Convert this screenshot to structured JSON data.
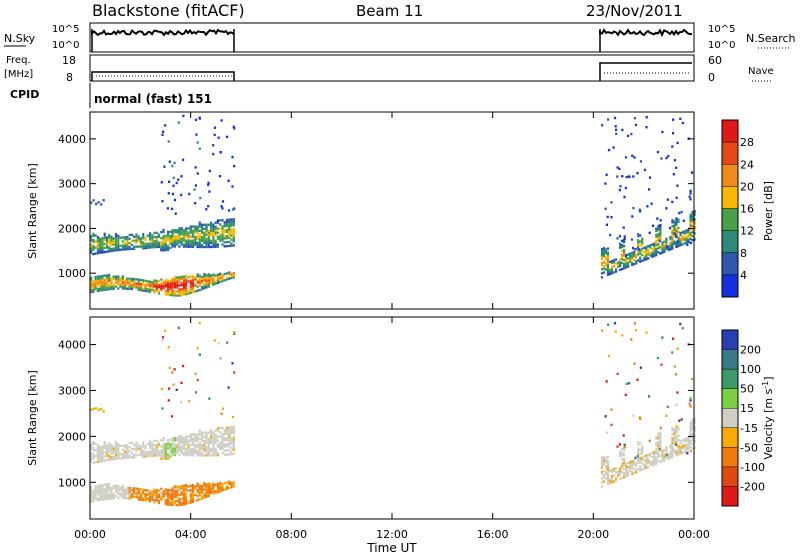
{
  "header": {
    "station": "Blackstone (fitACF)",
    "beam": "Beam 11",
    "date": "23/Nov/2011"
  },
  "panels": {
    "nsky": {
      "label": "N.Sky",
      "ticks": [
        "10^5",
        "10^0"
      ],
      "right_ticks": [
        "10^5",
        "10^0"
      ],
      "right_label": "N.Search"
    },
    "freq": {
      "label_line1": "Freq.",
      "label_line2": "[MHz]",
      "ticks": [
        "18",
        "8"
      ],
      "right_ticks": [
        "60",
        "0"
      ],
      "right_label": "Nave"
    },
    "cpid": {
      "label": "CPID",
      "value": "normal (fast) 151"
    }
  },
  "chart_data": [
    {
      "type": "heatmap",
      "title": "",
      "ylabel": "Slant Range [km]",
      "xlabel": "",
      "ylim": [
        200,
        4600
      ],
      "yticks": [
        1000,
        2000,
        3000,
        4000
      ],
      "colorbar": {
        "label": "Power [dB]",
        "ticks": [
          "4",
          "8",
          "12",
          "16",
          "20",
          "24",
          "28"
        ],
        "colors": [
          "#1430e0",
          "#2e58b0",
          "#2e8a78",
          "#4aa048",
          "#f6b800",
          "#f08a1c",
          "#e84818",
          "#e01818"
        ]
      },
      "data_coverage_ut_hours": [
        [
          0.0,
          5.75
        ],
        [
          20.3,
          24.0
        ]
      ],
      "echo_bands": [
        {
          "t0": 0.0,
          "t1": 5.75,
          "range_km": [
            500,
            1100
          ],
          "peak_power_db": 28
        },
        {
          "t0": 0.0,
          "t1": 5.75,
          "range_km": [
            1400,
            2300
          ],
          "peak_power_db": 22
        },
        {
          "t0": 20.3,
          "t1": 24.0,
          "range_km": [
            900,
            1900
          ],
          "peak_power_db": 22
        }
      ]
    },
    {
      "type": "heatmap",
      "title": "",
      "ylabel": "Slant Range [km]",
      "xlabel": "Time UT",
      "ylim": [
        200,
        4600
      ],
      "yticks": [
        1000,
        2000,
        3000,
        4000
      ],
      "colorbar": {
        "label": "Velocity [m s^-1]",
        "ticks": [
          "200",
          "100",
          "50",
          "15",
          "-15",
          "-50",
          "-100",
          "-200"
        ],
        "colors": [
          "#2a3eb8",
          "#3a7a88",
          "#3a9a68",
          "#7ad040",
          "#cfcfc6",
          "#f8aa00",
          "#f07a10",
          "#e04a10",
          "#e01818"
        ]
      },
      "data_coverage_ut_hours": [
        [
          0.0,
          5.75
        ],
        [
          20.3,
          24.0
        ]
      ]
    }
  ],
  "xaxis": {
    "label": "Time UT",
    "ticks": [
      "00:00",
      "04:00",
      "08:00",
      "12:00",
      "16:00",
      "20:00",
      "00:00"
    ]
  }
}
